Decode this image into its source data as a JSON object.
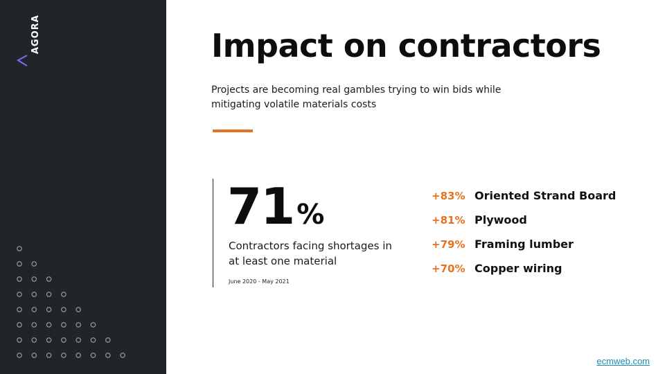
{
  "brand": {
    "logo_text": "AGORA",
    "sidebar_color": "#212529",
    "accent_color": "#e8731e",
    "logo_mark_color": "#7b6cf6"
  },
  "slide": {
    "title": "Impact on contractors",
    "subtitle": "Projects are becoming real gambles trying to win bids while mitigating volatile materials costs"
  },
  "stat": {
    "value": "71",
    "unit": "%",
    "description": "Contractors facing shortages in at least one material",
    "date_range": "June 2020 - May 2021"
  },
  "materials": [
    {
      "change": "+83%",
      "name": "Oriented Strand Board"
    },
    {
      "change": "+81%",
      "name": "Plywood"
    },
    {
      "change": "+79%",
      "name": "Framing lumber"
    },
    {
      "change": "+70%",
      "name": "Copper wiring"
    }
  ],
  "source": {
    "label": "ecmweb.com"
  }
}
